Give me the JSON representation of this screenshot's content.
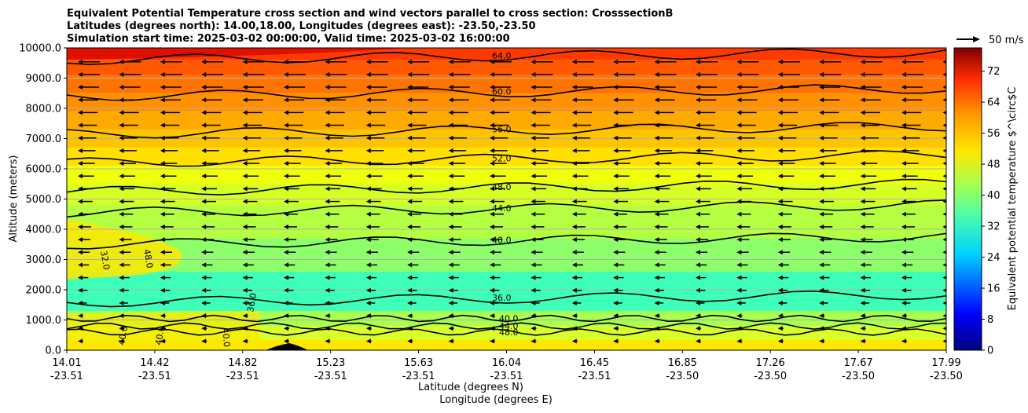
{
  "chart_data": {
    "type": "heatmap",
    "title_lines": [
      "Equivalent Potential Temperature cross section and wind vectors parallel to cross section: CrosssectionB",
      "Latitudes (degrees north): 14.00,18.00, Longitudes (degrees east): -23.50,-23.50",
      "Simulation start time: 2025-03-02 00:00:00, Valid time: 2025-03-02 16:00:00"
    ],
    "xlabel": "Latitude (degrees N)",
    "xlabel2": "Longitude (degrees E)",
    "ylabel": "Altitude (meters)",
    "x_ticks_lat": [
      "14.01",
      "14.42",
      "14.82",
      "15.23",
      "15.63",
      "16.04",
      "16.45",
      "16.85",
      "17.26",
      "17.67",
      "17.99"
    ],
    "x_ticks_lon": [
      "-23.51",
      "-23.51",
      "-23.51",
      "-23.51",
      "-23.51",
      "-23.51",
      "-23.51",
      "-23.50",
      "-23.50",
      "-23.50",
      "-23.50"
    ],
    "y_ticks": [
      "0.0",
      "1000.0",
      "2000.0",
      "3000.0",
      "4000.0",
      "5000.0",
      "6000.0",
      "7000.0",
      "8000.0",
      "9000.0",
      "10000.0"
    ],
    "ylim": [
      0,
      10000
    ],
    "grid": "horizontal",
    "colorbar": {
      "label": "Equivalent potential temperature $^\\circ$C",
      "ticks": [
        "0",
        "8",
        "16",
        "24",
        "32",
        "40",
        "48",
        "56",
        "64",
        "72"
      ],
      "range": [
        0,
        78
      ]
    },
    "quiver_key": "50 m/s",
    "contour_levels": [
      {
        "level": 36,
        "label": "36.0",
        "alt": 1580
      },
      {
        "level": 40,
        "label": "40.0",
        "alt": 3500
      },
      {
        "level": 44,
        "label": "44.0",
        "alt": 4550
      },
      {
        "level": 48,
        "label": "48.0",
        "alt": 5250
      },
      {
        "level": 52,
        "label": "52.0",
        "alt": 6200
      },
      {
        "level": 56,
        "label": "56.0",
        "alt": 7150
      },
      {
        "level": 60,
        "label": "60.0",
        "alt": 8400
      },
      {
        "level": 64,
        "label": "64.0",
        "alt": 9600
      }
    ],
    "near_surface_labels": [
      "40.0",
      "44.0",
      "48.0"
    ],
    "west_labels": [
      "32.0",
      "48.0",
      "40.0",
      "40.0",
      "40.0",
      "36.0"
    ]
  }
}
